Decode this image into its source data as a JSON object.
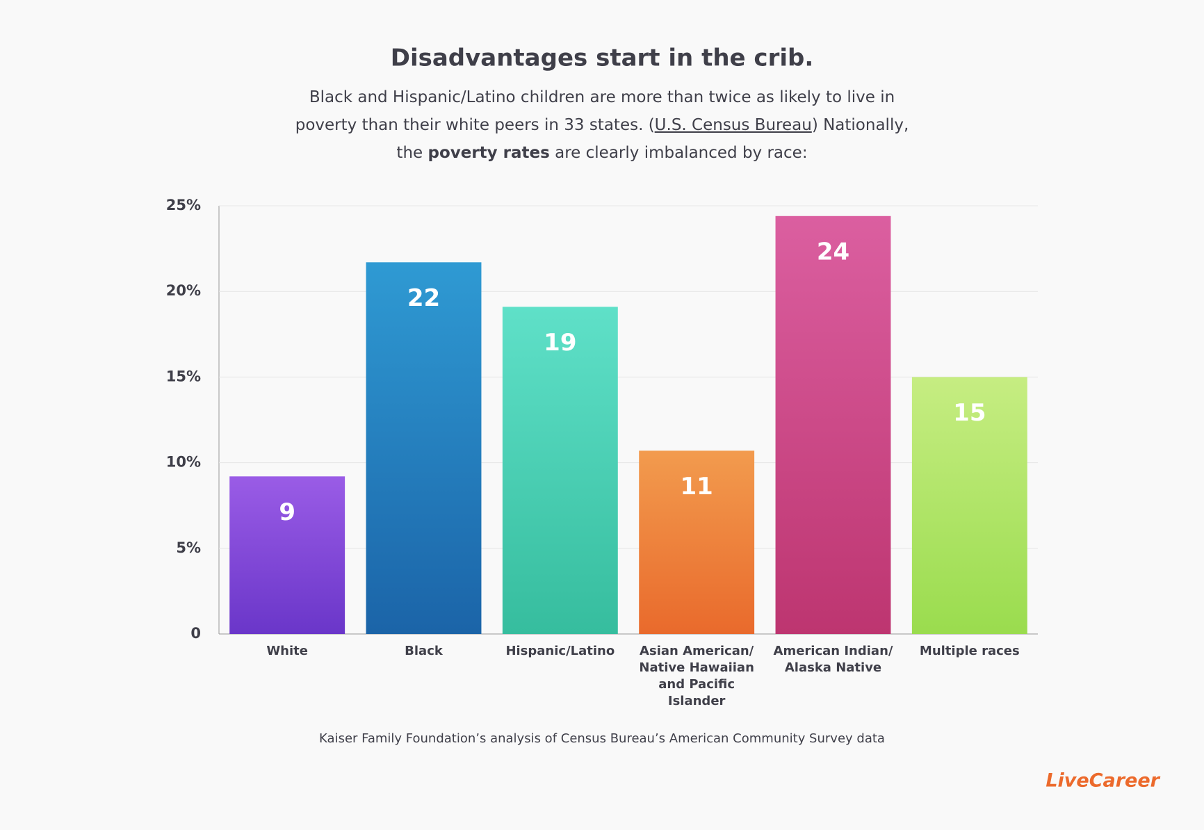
{
  "chart_data": {
    "type": "bar",
    "title": "Disadvantages start in the crib.",
    "subtitle": [
      "Black and Hispanic/Latino children are more than twice as likely to live in poverty than their white peers in 33 states. (",
      "U.S. Census Bureau",
      ") Nationally, the ",
      "poverty rates",
      " are clearly imbalanced by race:"
    ],
    "categories": [
      "White",
      "Black",
      "Hispanic/Latino",
      "Asian American/ Native Hawaiian and Pacific Islander",
      "American Indian/ Alaska Native",
      "Multiple races"
    ],
    "values": [
      9.2,
      21.7,
      19.1,
      10.7,
      24.4,
      15.0
    ],
    "value_labels": [
      "9",
      "22",
      "19",
      "11",
      "24",
      "15"
    ],
    "colors": [
      [
        "#9a5ce6",
        "#6a36c9"
      ],
      [
        "#2f9ad3",
        "#1b64a8"
      ],
      [
        "#5fe0c8",
        "#36bd9e"
      ],
      [
        "#f29b4e",
        "#e96a2c"
      ],
      [
        "#db5fa0",
        "#bd3570"
      ],
      [
        "#c6ed82",
        "#9adc4e"
      ]
    ],
    "ylim": [
      0,
      25
    ],
    "yticks": [
      0,
      {
        "value": 5,
        "label": "5%"
      },
      {
        "value": 10,
        "label": "10%"
      },
      {
        "value": 15,
        "label": "15%"
      },
      {
        "value": 20,
        "label": "20%"
      },
      {
        "value": 25,
        "label": "25%"
      }
    ],
    "grid": true,
    "source": "Kaiser Family Foundation’s analysis of Census Bureau’s American Community Survey data",
    "logo": "LiveCareer"
  }
}
